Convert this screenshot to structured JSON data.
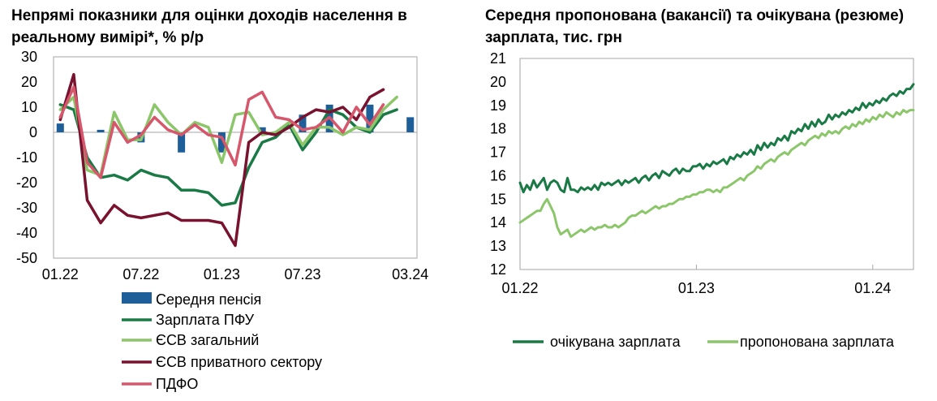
{
  "chart_data": [
    {
      "type": "bar+line",
      "title": "Непрямі показники для оцінки доходів населення в реальному вимірі*, % р/р",
      "ylim": [
        -50,
        30
      ],
      "yticks": [
        30,
        20,
        10,
        0,
        -10,
        -20,
        -30,
        -40,
        -50
      ],
      "x_categories": [
        "01.22",
        "02.22",
        "03.22",
        "04.22",
        "05.22",
        "06.22",
        "07.22",
        "08.22",
        "09.22",
        "10.22",
        "11.22",
        "12.22",
        "01.23",
        "02.23",
        "03.23",
        "04.23",
        "05.23",
        "06.23",
        "07.23",
        "08.23",
        "09.23",
        "10.23",
        "11.23",
        "12.23",
        "01.24",
        "02.24",
        "03.24"
      ],
      "xtick_labels": [
        {
          "index": 0,
          "label": "01.22"
        },
        {
          "index": 6,
          "label": "07.22"
        },
        {
          "index": 12,
          "label": "01.23"
        },
        {
          "index": 18,
          "label": "07.23"
        },
        {
          "index": 26,
          "label": "03.24"
        }
      ],
      "bars": {
        "name": "Середня пенсія",
        "color": "#1F5F99",
        "values": [
          3.5,
          0,
          0,
          1,
          0,
          0,
          -4,
          0,
          0,
          -8,
          0,
          0,
          -8,
          0,
          0,
          2,
          0,
          0,
          7,
          0,
          11,
          0,
          0,
          11,
          0,
          0,
          6
        ]
      },
      "series": [
        {
          "name": "Зарплата ПФУ",
          "color": "#1A7A45",
          "values": [
            11,
            9,
            -10,
            -18,
            -17,
            -19,
            -15,
            -17,
            -18,
            -23,
            -23,
            -24,
            -29,
            -28,
            -14,
            -4,
            -2,
            3,
            -7,
            0,
            9,
            7,
            2,
            0,
            7,
            9,
            null
          ]
        },
        {
          "name": "ЄСВ загальний",
          "color": "#8CC66A",
          "values": [
            9,
            14,
            -15,
            -17,
            8,
            -3,
            -3,
            11,
            4,
            -1,
            4,
            2,
            -12,
            7,
            8,
            -1,
            0,
            4,
            -5,
            2,
            2,
            -1,
            2,
            1,
            9,
            14,
            null
          ]
        },
        {
          "name": "ЄСВ приватного сектору",
          "color": "#78122E",
          "values": [
            5,
            23,
            -27,
            -36,
            -29,
            -33,
            -34,
            -33,
            -32,
            -35,
            -35,
            -35,
            -36,
            -45,
            -4,
            0,
            -1,
            2,
            6,
            9,
            8,
            10,
            5,
            14,
            17,
            null,
            null
          ]
        },
        {
          "name": "ПДФО",
          "color": "#D6566B",
          "values": [
            6,
            18,
            -12,
            -18,
            4,
            -4,
            -1,
            6,
            1,
            -1,
            3,
            -1,
            -2,
            -13,
            13,
            16,
            6,
            5,
            1,
            2,
            6,
            0,
            10,
            3,
            11,
            null,
            null
          ]
        }
      ],
      "legend_position": "bottom"
    },
    {
      "type": "line",
      "title": "Середня пропонована (вакансії) та очікувана (резюме) зарплата, тис. грн",
      "ylim": [
        12,
        21
      ],
      "yticks": [
        21,
        20,
        19,
        18,
        17,
        16,
        15,
        14,
        13,
        12
      ],
      "xtick_labels": [
        "01.22",
        "01.23",
        "01.24"
      ],
      "x_range_weeks": [
        0,
        116
      ],
      "xtick_weeks": [
        0,
        52,
        104
      ],
      "series": [
        {
          "name": "очікувана зарплата",
          "color": "#1A7A45",
          "x": [
            0,
            1,
            2,
            3,
            4,
            5,
            6,
            7,
            8,
            9,
            10,
            11,
            12,
            13,
            14,
            15,
            16,
            17,
            18,
            19,
            20,
            21,
            22,
            23,
            24,
            25,
            26,
            27,
            28,
            29,
            30,
            31,
            32,
            33,
            34,
            35,
            36,
            37,
            38,
            39,
            40,
            41,
            42,
            43,
            44,
            45,
            46,
            47,
            48,
            49,
            50,
            51,
            52,
            53,
            54,
            55,
            56,
            57,
            58,
            59,
            60,
            61,
            62,
            63,
            64,
            65,
            66,
            67,
            68,
            69,
            70,
            71,
            72,
            73,
            74,
            75,
            76,
            77,
            78,
            79,
            80,
            81,
            82,
            83,
            84,
            85,
            86,
            87,
            88,
            89,
            90,
            91,
            92,
            93,
            94,
            95,
            96,
            97,
            98,
            99,
            100,
            101,
            102,
            103,
            104,
            105,
            106,
            107,
            108,
            109,
            110,
            111,
            112,
            113,
            114,
            115,
            116
          ],
          "y": [
            15.7,
            15.3,
            15.6,
            15.4,
            15.8,
            15.5,
            15.7,
            15.9,
            15.4,
            15.7,
            15.8,
            15.7,
            15.4,
            15.3,
            15.9,
            15.4,
            15.4,
            15.3,
            15.5,
            15.4,
            15.5,
            15.4,
            15.6,
            15.4,
            15.7,
            15.6,
            15.7,
            15.6,
            15.7,
            15.8,
            15.6,
            15.8,
            15.7,
            15.8,
            15.9,
            15.7,
            15.9,
            16.0,
            15.8,
            16.0,
            16.1,
            15.9,
            16.2,
            16.1,
            16.0,
            16.2,
            16.3,
            16.1,
            16.3,
            16.2,
            16.2,
            16.4,
            16.4,
            16.5,
            16.3,
            16.5,
            16.4,
            16.6,
            16.5,
            16.6,
            16.7,
            16.5,
            16.8,
            16.7,
            16.9,
            16.8,
            17.0,
            16.9,
            17.1,
            16.9,
            17.3,
            17.1,
            17.4,
            17.2,
            17.4,
            17.3,
            17.6,
            17.5,
            17.7,
            17.5,
            17.9,
            17.8,
            18.0,
            17.9,
            18.2,
            18.0,
            18.3,
            18.1,
            18.4,
            18.2,
            18.3,
            18.6,
            18.4,
            18.6,
            18.5,
            18.7,
            18.6,
            18.8,
            18.7,
            18.9,
            18.8,
            19.1,
            18.9,
            19.1,
            19.0,
            19.2,
            19.1,
            19.3,
            19.2,
            19.4,
            19.5,
            19.4,
            19.6,
            19.5,
            19.7,
            19.7,
            19.9
          ]
        },
        {
          "name": "пропонована зарплата",
          "color": "#8CC66A",
          "x": [
            0,
            1,
            2,
            3,
            4,
            5,
            6,
            7,
            8,
            9,
            10,
            11,
            12,
            13,
            14,
            15,
            16,
            17,
            18,
            19,
            20,
            21,
            22,
            23,
            24,
            25,
            26,
            27,
            28,
            29,
            30,
            31,
            32,
            33,
            34,
            35,
            36,
            37,
            38,
            39,
            40,
            41,
            42,
            43,
            44,
            45,
            46,
            47,
            48,
            49,
            50,
            51,
            52,
            53,
            54,
            55,
            56,
            57,
            58,
            59,
            60,
            61,
            62,
            63,
            64,
            65,
            66,
            67,
            68,
            69,
            70,
            71,
            72,
            73,
            74,
            75,
            76,
            77,
            78,
            79,
            80,
            81,
            82,
            83,
            84,
            85,
            86,
            87,
            88,
            89,
            90,
            91,
            92,
            93,
            94,
            95,
            96,
            97,
            98,
            99,
            100,
            101,
            102,
            103,
            104,
            105,
            106,
            107,
            108,
            109,
            110,
            111,
            112,
            113,
            114,
            115,
            116
          ],
          "y": [
            14.0,
            14.1,
            14.2,
            14.3,
            14.4,
            14.5,
            14.5,
            14.8,
            15.0,
            14.7,
            14.4,
            13.8,
            13.5,
            13.6,
            13.7,
            13.4,
            13.5,
            13.6,
            13.7,
            13.6,
            13.7,
            13.8,
            13.7,
            13.8,
            13.8,
            13.9,
            13.8,
            13.8,
            13.9,
            13.8,
            13.9,
            14.0,
            14.2,
            14.3,
            14.3,
            14.4,
            14.5,
            14.4,
            14.5,
            14.6,
            14.7,
            14.6,
            14.7,
            14.7,
            14.8,
            14.8,
            14.9,
            15.0,
            15.0,
            15.1,
            15.1,
            15.2,
            15.2,
            15.3,
            15.3,
            15.4,
            15.4,
            15.3,
            15.4,
            15.3,
            15.5,
            15.5,
            15.6,
            15.7,
            15.8,
            15.9,
            15.8,
            16.0,
            16.1,
            16.2,
            16.4,
            16.3,
            16.5,
            16.6,
            16.7,
            16.6,
            16.8,
            16.9,
            17.0,
            16.9,
            17.1,
            17.2,
            17.3,
            17.4,
            17.3,
            17.5,
            17.6,
            17.7,
            17.6,
            17.8,
            17.7,
            17.9,
            17.8,
            17.9,
            17.8,
            18.0,
            18.1,
            18.0,
            18.2,
            18.1,
            18.3,
            18.2,
            18.4,
            18.3,
            18.5,
            18.4,
            18.6,
            18.5,
            18.7,
            18.6,
            18.5,
            18.7,
            18.6,
            18.8,
            18.7,
            18.8,
            18.8
          ]
        }
      ],
      "legend_position": "bottom"
    }
  ]
}
